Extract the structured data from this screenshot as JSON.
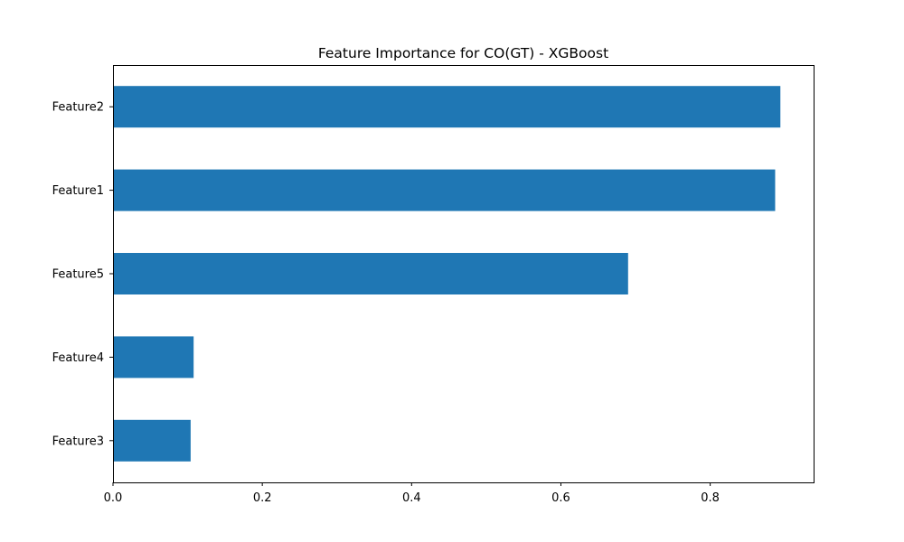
{
  "chart_data": {
    "type": "bar",
    "orientation": "horizontal",
    "title": "Feature Importance for CO(GT) - XGBoost",
    "xlabel": "",
    "ylabel": "",
    "categories": [
      "Feature2",
      "Feature1",
      "Feature5",
      "Feature4",
      "Feature3"
    ],
    "values": [
      0.894,
      0.887,
      0.69,
      0.108,
      0.104
    ],
    "xlim": [
      0.0,
      0.9385
    ],
    "xticks": [
      "0.0",
      "0.2",
      "0.4",
      "0.6",
      "0.8"
    ],
    "grid": false,
    "legend": "none",
    "bar_color": "#1f77b4",
    "axis_color": "#000000",
    "background_color": "#ffffff"
  }
}
